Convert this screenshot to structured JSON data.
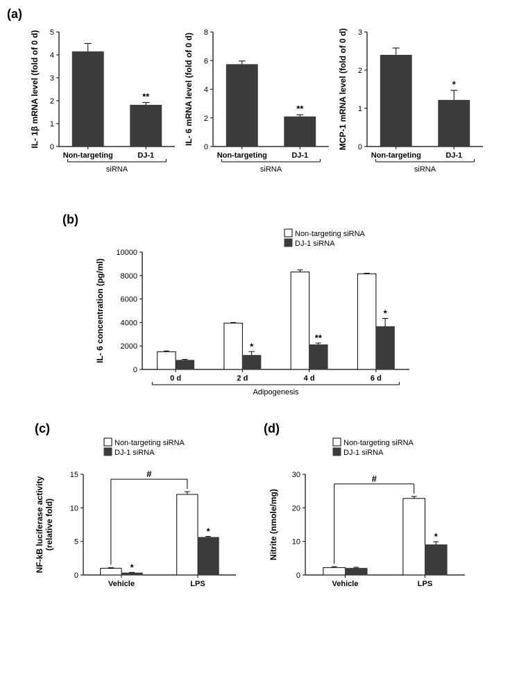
{
  "panel_a": {
    "label": "(a)",
    "charts": [
      {
        "type": "bar",
        "ylabel": "IL- 1β mRNA level  (fold of 0 d)",
        "categories": [
          "Non-targeting",
          "DJ-1"
        ],
        "values": [
          4.15,
          1.82
        ],
        "errors": [
          0.35,
          0.1
        ],
        "ylim": [
          0,
          5
        ],
        "ytick_step": 1,
        "bar_color": "#3b3b3b",
        "axis_color": "#000000",
        "background_color": "#ffffff",
        "xaxis_sublabel": "siRNA",
        "significance": [
          null,
          "**"
        ]
      },
      {
        "type": "bar",
        "ylabel": "IL- 6 mRNA level (fold of 0 d)",
        "categories": [
          "Non-targeting",
          "DJ-1"
        ],
        "values": [
          5.75,
          2.1
        ],
        "errors": [
          0.22,
          0.12
        ],
        "ylim": [
          0,
          8
        ],
        "ytick_step": 2,
        "bar_color": "#3b3b3b",
        "axis_color": "#000000",
        "background_color": "#ffffff",
        "xaxis_sublabel": "siRNA",
        "significance": [
          null,
          "**"
        ]
      },
      {
        "type": "bar",
        "ylabel": "MCP-1 mRNA level (fold of 0 d)",
        "categories": [
          "Non-targeting",
          "DJ-1"
        ],
        "values": [
          2.4,
          1.22
        ],
        "errors": [
          0.18,
          0.25
        ],
        "ylim": [
          0,
          3
        ],
        "ytick_step": 1,
        "bar_color": "#3b3b3b",
        "axis_color": "#000000",
        "background_color": "#ffffff",
        "xaxis_sublabel": "siRNA",
        "significance": [
          null,
          "*"
        ]
      }
    ]
  },
  "panel_b": {
    "label": "(b)",
    "type": "grouped_bar",
    "ylabel": "IL- 6  concentration (pg/ml)",
    "xlabel": "Adipogenesis",
    "categories": [
      "0 d",
      "2 d",
      "4 d",
      "6 d"
    ],
    "series": [
      {
        "name": "Non-targeting siRNA",
        "color": "#ffffff",
        "border": "#000000",
        "values": [
          1500,
          3950,
          8300,
          8150
        ],
        "errors": [
          80,
          50,
          180,
          50
        ]
      },
      {
        "name": "DJ-1 siRNA",
        "color": "#3b3b3b",
        "border": "#3b3b3b",
        "values": [
          780,
          1200,
          2100,
          3650
        ],
        "errors": [
          80,
          320,
          150,
          700
        ]
      }
    ],
    "significance_on_series2": [
      null,
      "*",
      "**",
      "*"
    ],
    "ylim": [
      0,
      10000
    ],
    "ytick_step": 2000,
    "axis_color": "#000000",
    "background_color": "#ffffff"
  },
  "panel_c": {
    "label": "(c)",
    "type": "grouped_bar",
    "ylabel": "NF-kB luciferase activity\n(relative fold)",
    "categories": [
      "Vehicle",
      "LPS"
    ],
    "series": [
      {
        "name": "Non-targeting siRNA",
        "color": "#ffffff",
        "border": "#000000",
        "values": [
          1.0,
          12.0
        ],
        "errors": [
          0.1,
          0.4
        ]
      },
      {
        "name": "DJ-1 siRNA",
        "color": "#3b3b3b",
        "border": "#3b3b3b",
        "values": [
          0.3,
          5.6
        ],
        "errors": [
          0.08,
          0.15
        ]
      }
    ],
    "significance_on_series2": [
      "*",
      "*"
    ],
    "cross_significance": "#",
    "ylim": [
      0,
      15
    ],
    "ytick_step": 5,
    "axis_color": "#000000",
    "background_color": "#ffffff"
  },
  "panel_d": {
    "label": "(d)",
    "type": "grouped_bar",
    "ylabel": "Nitrite (nmole/mg)",
    "categories": [
      "Vehicle",
      "LPS"
    ],
    "series": [
      {
        "name": "Non-targeting siRNA",
        "color": "#ffffff",
        "border": "#000000",
        "values": [
          2.2,
          22.8
        ],
        "errors": [
          0.3,
          0.6
        ]
      },
      {
        "name": "DJ-1 siRNA",
        "color": "#3b3b3b",
        "border": "#3b3b3b",
        "values": [
          2.0,
          9.0
        ],
        "errors": [
          0.3,
          0.9
        ]
      }
    ],
    "significance_on_series2": [
      null,
      "*"
    ],
    "cross_significance": "#",
    "ylim": [
      0,
      30
    ],
    "ytick_step": 10,
    "axis_color": "#000000",
    "background_color": "#ffffff"
  }
}
